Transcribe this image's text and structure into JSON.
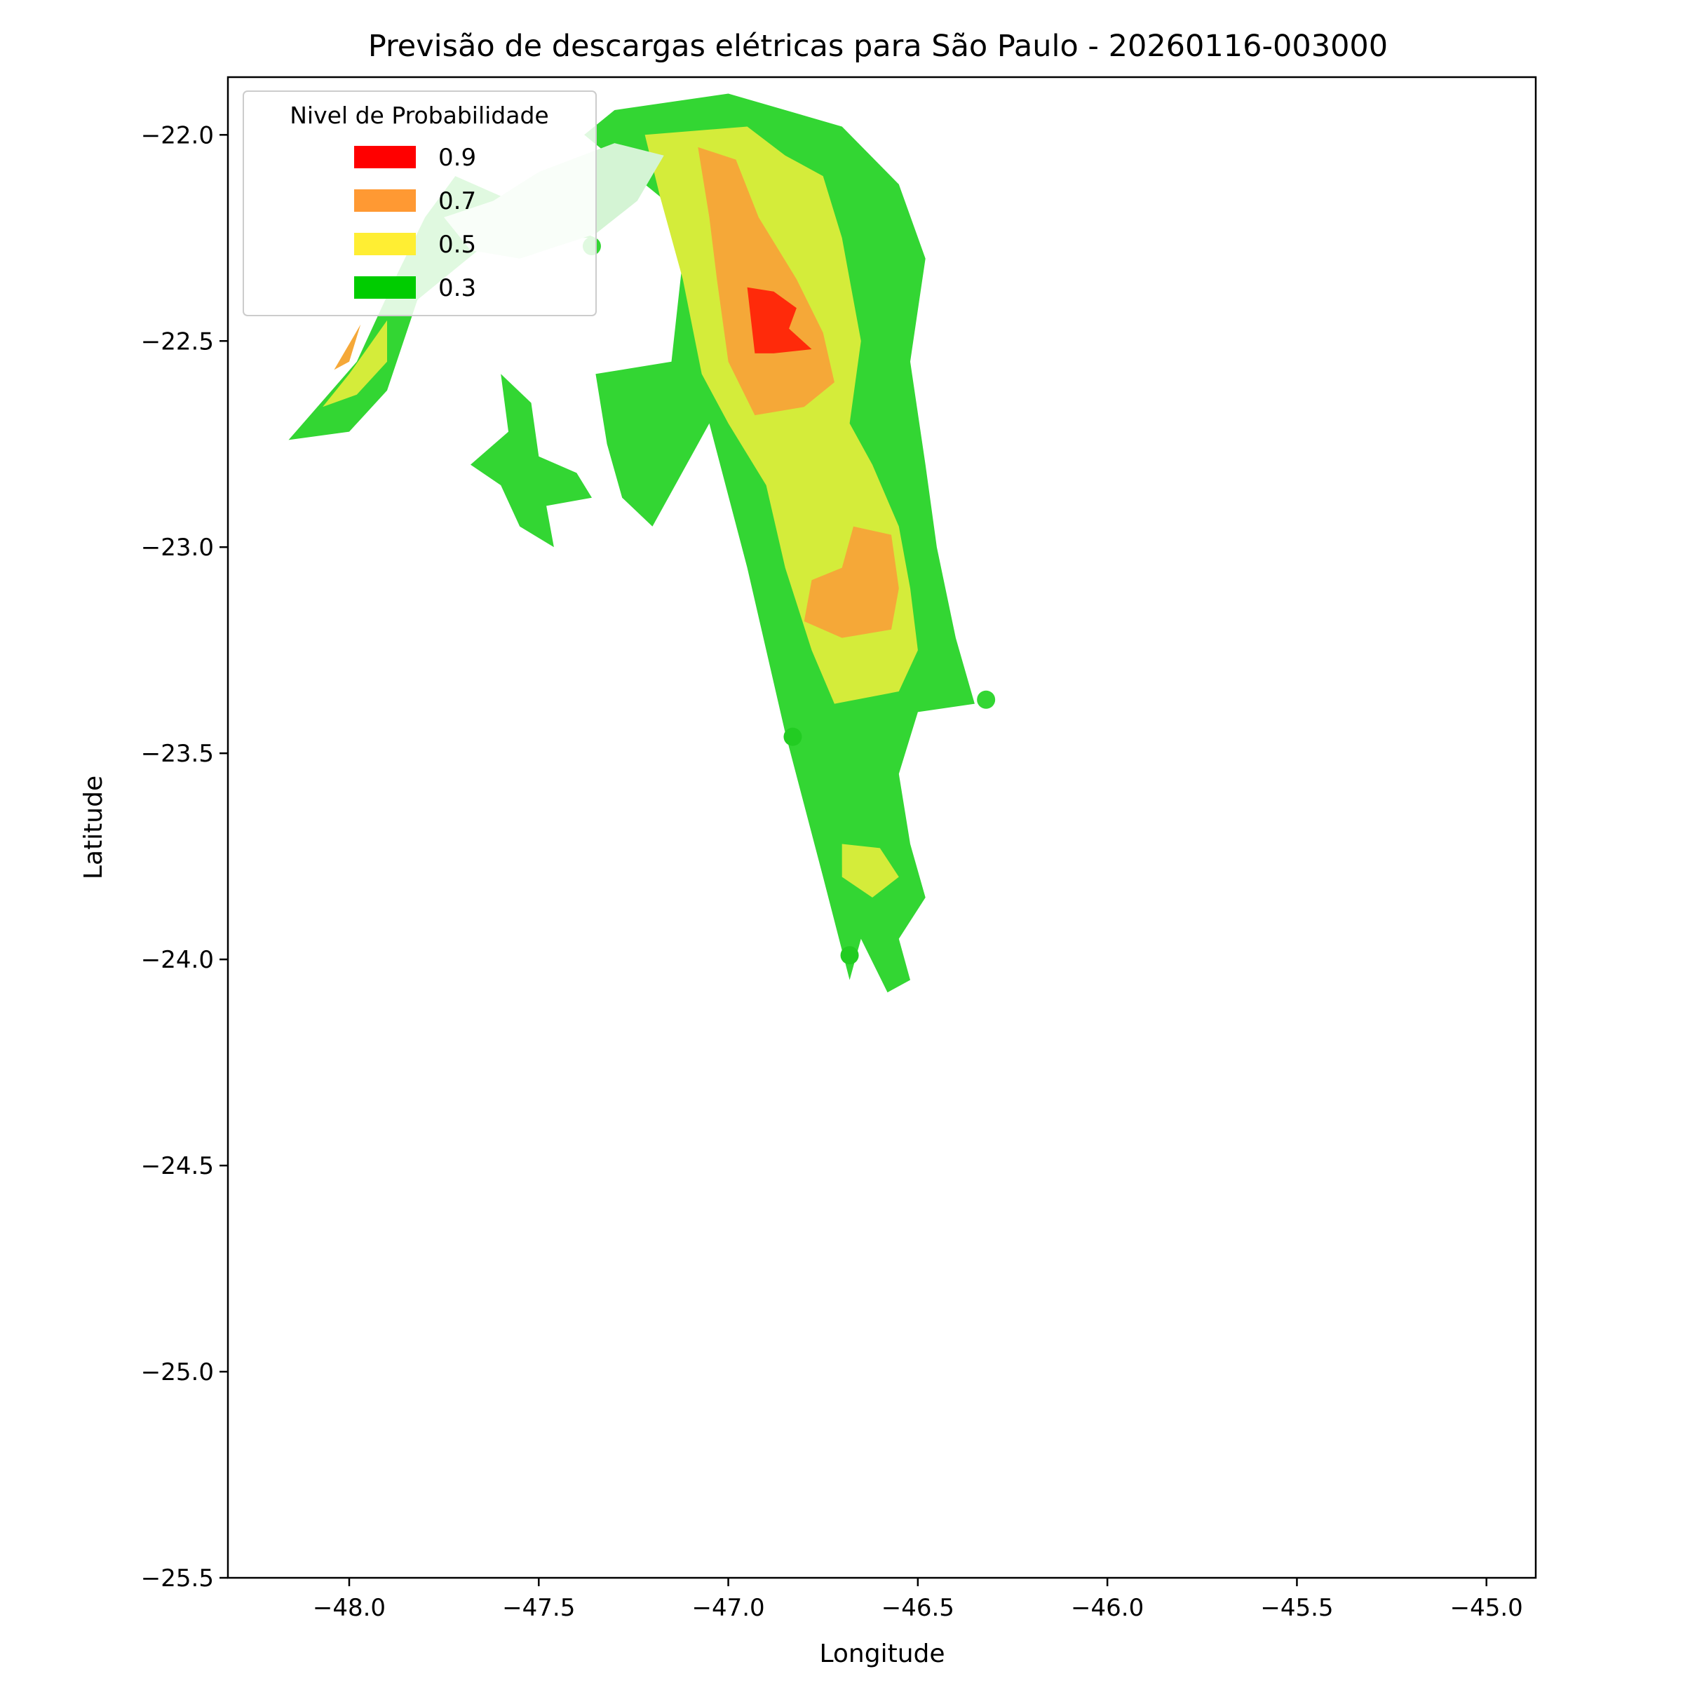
{
  "title": "Previsão de descargas elétricas para São Paulo - 20260116-003000",
  "chart_data": {
    "type": "heatmap",
    "title": "Previsão de descargas elétricas para São Paulo - 20260116-003000",
    "xlabel": "Longitude",
    "ylabel": "Latitude",
    "xlim": [
      -48.32,
      -44.87
    ],
    "ylim": [
      -25.5,
      -21.86
    ],
    "x_ticks": [
      -48.0,
      -47.5,
      -47.0,
      -46.5,
      -46.0,
      -45.5,
      -45.0
    ],
    "y_ticks": [
      -22.0,
      -22.5,
      -23.0,
      -23.5,
      -24.0,
      -24.5,
      -25.0,
      -25.5
    ],
    "x_tick_labels": [
      "−48.0",
      "−47.5",
      "−47.0",
      "−46.5",
      "−46.0",
      "−45.5",
      "−45.0"
    ],
    "y_tick_labels": [
      "−22.0",
      "−22.5",
      "−23.0",
      "−23.5",
      "−24.0",
      "−24.5",
      "−25.0",
      "−25.5"
    ],
    "grid": false,
    "legend": {
      "title": "Nivel de Probabilidade",
      "placement": "top-left",
      "entries": [
        {
          "label": "0.9",
          "color": "#ff0000"
        },
        {
          "label": "0.7",
          "color": "#ff9933"
        },
        {
          "label": "0.5",
          "color": "#ffee33"
        },
        {
          "label": "0.3",
          "color": "#00cc00"
        }
      ]
    },
    "regions": [
      {
        "level": "0.3",
        "color": "#33d633",
        "polygon": [
          [
            -47.0,
            -21.9
          ],
          [
            -46.7,
            -21.98
          ],
          [
            -46.55,
            -22.12
          ],
          [
            -46.48,
            -22.3
          ],
          [
            -46.52,
            -22.55
          ],
          [
            -46.48,
            -22.8
          ],
          [
            -46.45,
            -23.0
          ],
          [
            -46.4,
            -23.22
          ],
          [
            -46.35,
            -23.38
          ],
          [
            -46.5,
            -23.4
          ],
          [
            -46.55,
            -23.55
          ],
          [
            -46.52,
            -23.72
          ],
          [
            -46.48,
            -23.85
          ],
          [
            -46.55,
            -23.95
          ],
          [
            -46.52,
            -24.05
          ],
          [
            -46.58,
            -24.08
          ],
          [
            -46.65,
            -23.95
          ],
          [
            -46.68,
            -24.05
          ],
          [
            -46.75,
            -23.8
          ],
          [
            -46.85,
            -23.45
          ],
          [
            -46.95,
            -23.05
          ],
          [
            -47.05,
            -22.7
          ],
          [
            -47.2,
            -22.95
          ],
          [
            -47.28,
            -22.88
          ],
          [
            -47.32,
            -22.75
          ],
          [
            -47.35,
            -22.58
          ],
          [
            -47.15,
            -22.55
          ],
          [
            -47.12,
            -22.3
          ],
          [
            -47.18,
            -22.15
          ],
          [
            -47.38,
            -22.0
          ],
          [
            -47.3,
            -21.94
          ]
        ]
      },
      {
        "level": "0.3",
        "color": "#33d633",
        "polygon": [
          [
            -47.35,
            -22.25
          ],
          [
            -47.72,
            -22.1
          ],
          [
            -47.8,
            -22.2
          ],
          [
            -47.88,
            -22.35
          ],
          [
            -47.98,
            -22.55
          ],
          [
            -48.16,
            -22.74
          ],
          [
            -48.0,
            -22.72
          ],
          [
            -47.9,
            -22.62
          ],
          [
            -47.82,
            -22.4
          ],
          [
            -47.62,
            -22.25
          ]
        ]
      },
      {
        "level": "0.3",
        "color": "#33d633",
        "polygon": [
          [
            -47.6,
            -22.58
          ],
          [
            -47.52,
            -22.65
          ],
          [
            -47.5,
            -22.78
          ],
          [
            -47.4,
            -22.82
          ],
          [
            -47.36,
            -22.88
          ],
          [
            -47.48,
            -22.9
          ],
          [
            -47.46,
            -23.0
          ],
          [
            -47.55,
            -22.95
          ],
          [
            -47.6,
            -22.85
          ],
          [
            -47.68,
            -22.8
          ],
          [
            -47.58,
            -22.72
          ]
        ]
      },
      {
        "level": "0.5",
        "color": "#d4ec3a",
        "polygon": [
          [
            -47.22,
            -22.0
          ],
          [
            -46.95,
            -21.98
          ],
          [
            -46.85,
            -22.05
          ],
          [
            -46.75,
            -22.1
          ],
          [
            -46.7,
            -22.25
          ],
          [
            -46.65,
            -22.5
          ],
          [
            -46.68,
            -22.7
          ],
          [
            -46.62,
            -22.8
          ],
          [
            -46.55,
            -22.95
          ],
          [
            -46.52,
            -23.1
          ],
          [
            -46.5,
            -23.25
          ],
          [
            -46.55,
            -23.35
          ],
          [
            -46.72,
            -23.38
          ],
          [
            -46.78,
            -23.25
          ],
          [
            -46.85,
            -23.05
          ],
          [
            -46.9,
            -22.85
          ],
          [
            -47.0,
            -22.7
          ],
          [
            -47.07,
            -22.58
          ],
          [
            -47.12,
            -22.35
          ],
          [
            -47.18,
            -22.15
          ]
        ]
      },
      {
        "level": "0.5",
        "color": "#d4ec3a",
        "polygon": [
          [
            -47.9,
            -22.45
          ],
          [
            -48.0,
            -22.58
          ],
          [
            -48.07,
            -22.66
          ],
          [
            -47.98,
            -22.63
          ],
          [
            -47.9,
            -22.55
          ]
        ]
      },
      {
        "level": "0.5",
        "color": "#d4ec3a",
        "polygon": [
          [
            -46.7,
            -23.72
          ],
          [
            -46.6,
            -23.73
          ],
          [
            -46.55,
            -23.8
          ],
          [
            -46.62,
            -23.85
          ],
          [
            -46.7,
            -23.8
          ]
        ]
      },
      {
        "level": "0.7",
        "color": "#f5a838",
        "polygon": [
          [
            -47.08,
            -22.03
          ],
          [
            -46.98,
            -22.06
          ],
          [
            -46.92,
            -22.2
          ],
          [
            -46.82,
            -22.35
          ],
          [
            -46.75,
            -22.48
          ],
          [
            -46.72,
            -22.6
          ],
          [
            -46.8,
            -22.66
          ],
          [
            -46.93,
            -22.68
          ],
          [
            -47.0,
            -22.55
          ],
          [
            -47.03,
            -22.35
          ],
          [
            -47.05,
            -22.2
          ]
        ]
      },
      {
        "level": "0.7",
        "color": "#f5a838",
        "polygon": [
          [
            -46.67,
            -22.95
          ],
          [
            -46.57,
            -22.97
          ],
          [
            -46.55,
            -23.1
          ],
          [
            -46.57,
            -23.2
          ],
          [
            -46.7,
            -23.22
          ],
          [
            -46.8,
            -23.18
          ],
          [
            -46.78,
            -23.08
          ],
          [
            -46.7,
            -23.05
          ]
        ]
      },
      {
        "level": "0.7",
        "color": "#f5a838",
        "polygon": [
          [
            -47.97,
            -22.46
          ],
          [
            -48.04,
            -22.57
          ],
          [
            -48.0,
            -22.55
          ]
        ]
      },
      {
        "level": "0.9",
        "color": "#ff2a0a",
        "polygon": [
          [
            -46.95,
            -22.37
          ],
          [
            -46.88,
            -22.38
          ],
          [
            -46.82,
            -22.42
          ],
          [
            -46.84,
            -22.47
          ],
          [
            -46.78,
            -22.52
          ],
          [
            -46.88,
            -22.53
          ],
          [
            -46.93,
            -22.53
          ]
        ]
      }
    ],
    "light_patch": [
      [
        -47.5,
        -22.09
      ],
      [
        -47.3,
        -22.02
      ],
      [
        -47.17,
        -22.05
      ],
      [
        -47.24,
        -22.16
      ],
      [
        -47.35,
        -22.24
      ],
      [
        -47.55,
        -22.3
      ],
      [
        -47.68,
        -22.28
      ],
      [
        -47.75,
        -22.2
      ],
      [
        -47.62,
        -22.16
      ]
    ],
    "points": [
      {
        "lon": -47.36,
        "lat": -22.27,
        "color": "#33d633",
        "r": 13
      },
      {
        "lon": -47.03,
        "lat": -22.13,
        "color": "#f5a838",
        "r": 13
      },
      {
        "lon": -46.32,
        "lat": -23.37,
        "color": "#33d633",
        "r": 13
      },
      {
        "lon": -46.83,
        "lat": -23.46,
        "color": "#22cc22",
        "r": 13
      },
      {
        "lon": -46.68,
        "lat": -23.99,
        "color": "#22cc22",
        "r": 13
      }
    ]
  }
}
